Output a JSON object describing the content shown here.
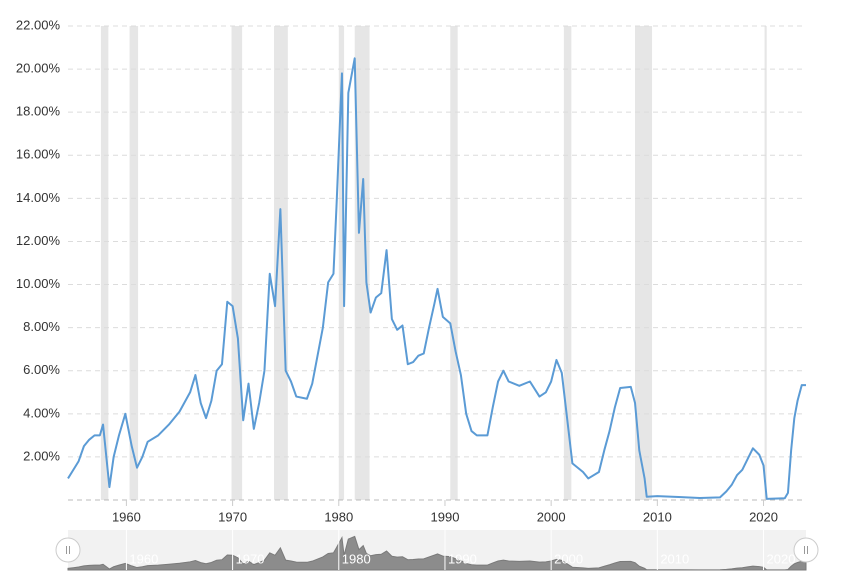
{
  "chart_data": {
    "type": "line",
    "color": "#5b9bd5",
    "recession_color": "#e6e6e6",
    "grid": true,
    "xlim": [
      1954.5,
      2024
    ],
    "ylim": [
      0,
      22
    ],
    "xticks": [
      1960,
      1970,
      1980,
      1990,
      2000,
      2010,
      2020
    ],
    "yticks": [
      {
        "value": 2,
        "label": "2.00%"
      },
      {
        "value": 4,
        "label": "4.00%"
      },
      {
        "value": 6,
        "label": "6.00%"
      },
      {
        "value": 8,
        "label": "8.00%"
      },
      {
        "value": 10,
        "label": "10.00%"
      },
      {
        "value": 12,
        "label": "12.00%"
      },
      {
        "value": 14,
        "label": "14.00%"
      },
      {
        "value": 16,
        "label": "16.00%"
      },
      {
        "value": 18,
        "label": "18.00%"
      },
      {
        "value": 20,
        "label": "20.00%"
      },
      {
        "value": 22,
        "label": "22.00%"
      }
    ],
    "recessions": [
      [
        1957.6,
        1958.3
      ],
      [
        1960.3,
        1961.1
      ],
      [
        1969.9,
        1970.9
      ],
      [
        1973.9,
        1975.2
      ],
      [
        1980.0,
        1980.5
      ],
      [
        1981.5,
        1982.9
      ],
      [
        1990.5,
        1991.2
      ],
      [
        2001.2,
        2001.9
      ],
      [
        2007.9,
        2009.5
      ],
      [
        2020.1,
        2020.3
      ]
    ],
    "x": [
      1954.5,
      1955,
      1955.5,
      1956,
      1956.5,
      1957,
      1957.5,
      1957.8,
      1958.4,
      1958.8,
      1959.3,
      1959.9,
      1960.5,
      1961,
      1961.5,
      1962,
      1963,
      1964,
      1965,
      1966,
      1966.5,
      1967,
      1967.5,
      1968,
      1968.5,
      1969,
      1969.5,
      1970,
      1970.5,
      1971,
      1971.5,
      1972,
      1972.5,
      1973,
      1973.5,
      1974,
      1974.5,
      1975,
      1975.5,
      1976,
      1977,
      1977.5,
      1978,
      1978.5,
      1979,
      1979.5,
      1979.8,
      1980.3,
      1980.5,
      1980.9,
      1981.5,
      1981.9,
      1982.3,
      1982.6,
      1983,
      1983.5,
      1984,
      1984.5,
      1985,
      1985.5,
      1986,
      1986.5,
      1987,
      1987.5,
      1988,
      1988.5,
      1989,
      1989.3,
      1989.8,
      1990.5,
      1991,
      1991.5,
      1992,
      1992.5,
      1993,
      1994,
      1994.5,
      1995,
      1995.5,
      1996,
      1997,
      1998,
      1998.9,
      1999.5,
      2000,
      2000.5,
      2001,
      2001.5,
      2002,
      2003,
      2003.5,
      2004.5,
      2005,
      2005.5,
      2006,
      2006.5,
      2007.5,
      2007.9,
      2008.3,
      2008.8,
      2009,
      2010,
      2012,
      2014,
      2015.9,
      2016.5,
      2017,
      2017.5,
      2018,
      2018.5,
      2019,
      2019.6,
      2020,
      2020.3,
      2022,
      2022.3,
      2022.6,
      2022.9,
      2023.2,
      2023.6,
      2024
    ],
    "values": [
      1.0,
      1.4,
      1.8,
      2.5,
      2.8,
      3.0,
      3.0,
      3.5,
      0.6,
      2.0,
      3.0,
      4.0,
      2.5,
      1.5,
      2.0,
      2.7,
      3.0,
      3.5,
      4.1,
      5.0,
      5.8,
      4.5,
      3.8,
      4.6,
      6.0,
      6.3,
      9.2,
      9.0,
      7.5,
      3.7,
      5.4,
      3.3,
      4.5,
      6.0,
      10.5,
      9.0,
      13.5,
      6.0,
      5.5,
      4.8,
      4.7,
      5.4,
      6.7,
      8.0,
      10.1,
      10.5,
      13.8,
      19.8,
      9.0,
      18.9,
      20.5,
      12.4,
      14.9,
      10.1,
      8.7,
      9.4,
      9.6,
      11.6,
      8.4,
      7.9,
      8.1,
      6.3,
      6.4,
      6.7,
      6.8,
      8.0,
      9.1,
      9.8,
      8.5,
      8.2,
      6.9,
      5.8,
      4.0,
      3.2,
      3.0,
      3.0,
      4.3,
      5.5,
      6.0,
      5.5,
      5.3,
      5.5,
      4.8,
      5.0,
      5.5,
      6.5,
      5.9,
      3.8,
      1.7,
      1.3,
      1.0,
      1.3,
      2.3,
      3.2,
      4.3,
      5.2,
      5.25,
      4.5,
      2.3,
      1.0,
      0.15,
      0.18,
      0.14,
      0.09,
      0.12,
      0.4,
      0.7,
      1.15,
      1.4,
      1.9,
      2.4,
      2.1,
      1.6,
      0.05,
      0.08,
      0.33,
      2.3,
      3.8,
      4.6,
      5.33,
      5.33
    ]
  }
}
